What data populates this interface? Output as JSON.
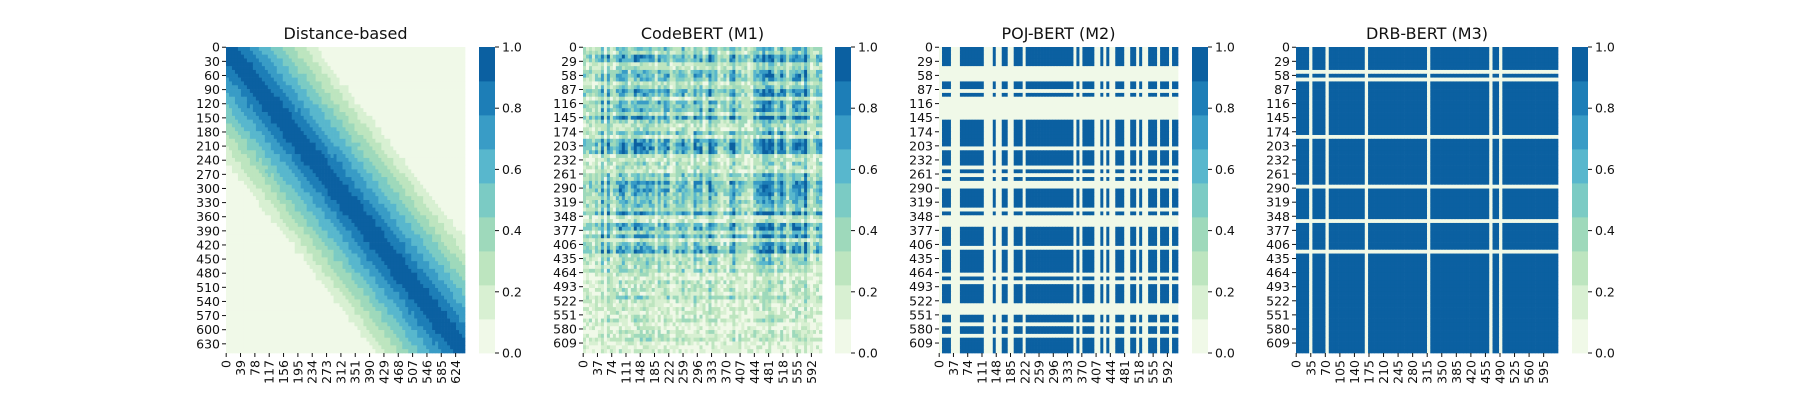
{
  "chart_data": [
    {
      "type": "heatmap",
      "title": "Distance-based",
      "pattern": "diagonal-band",
      "n_rows": 650,
      "n_cols": 650,
      "y_ticks": [
        "0",
        "30",
        "60",
        "90",
        "120",
        "150",
        "180",
        "210",
        "240",
        "270",
        "300",
        "330",
        "360",
        "390",
        "420",
        "450",
        "480",
        "510",
        "540",
        "570",
        "600",
        "630"
      ],
      "x_ticks": [
        "0",
        "39",
        "78",
        "117",
        "156",
        "195",
        "234",
        "273",
        "312",
        "351",
        "390",
        "429",
        "468",
        "507",
        "546",
        "585",
        "624"
      ],
      "colorbar": {
        "min": 0.0,
        "max": 1.0,
        "ticks": [
          "0.0",
          "0.2",
          "0.4",
          "0.6",
          "0.8",
          "1.0"
        ]
      }
    },
    {
      "type": "heatmap",
      "title": "CodeBERT (M1)",
      "pattern": "dense-noisy",
      "n_rows": 630,
      "n_cols": 620,
      "y_ticks": [
        "0",
        "29",
        "58",
        "87",
        "116",
        "145",
        "174",
        "203",
        "232",
        "261",
        "290",
        "319",
        "348",
        "377",
        "406",
        "435",
        "464",
        "493",
        "522",
        "551",
        "580",
        "609"
      ],
      "x_ticks": [
        "0",
        "37",
        "74",
        "111",
        "148",
        "185",
        "222",
        "259",
        "296",
        "333",
        "370",
        "407",
        "444",
        "481",
        "518",
        "555",
        "592"
      ],
      "colorbar": {
        "min": 0.0,
        "max": 1.0,
        "ticks": [
          "0.0",
          "0.2",
          "0.4",
          "0.6",
          "0.8",
          "1.0"
        ]
      }
    },
    {
      "type": "heatmap",
      "title": "POJ-BERT (M2)",
      "pattern": "binary-grid",
      "n_rows": 630,
      "n_cols": 620,
      "y_ticks": [
        "0",
        "29",
        "58",
        "87",
        "116",
        "145",
        "174",
        "203",
        "232",
        "261",
        "290",
        "319",
        "348",
        "377",
        "406",
        "435",
        "464",
        "493",
        "522",
        "551",
        "580",
        "609"
      ],
      "x_ticks": [
        "0",
        "37",
        "74",
        "111",
        "148",
        "185",
        "222",
        "259",
        "296",
        "333",
        "370",
        "407",
        "444",
        "481",
        "518",
        "555",
        "592"
      ],
      "colorbar": {
        "min": 0.0,
        "max": 1.0,
        "ticks": [
          "0.0",
          "0.2",
          "0.4",
          "0.6",
          "0.8",
          "1.0"
        ]
      }
    },
    {
      "type": "heatmap",
      "title": "DRB-BERT (M3)",
      "pattern": "mostly-saturated",
      "n_rows": 630,
      "n_cols": 630,
      "y_ticks": [
        "0",
        "29",
        "58",
        "87",
        "116",
        "145",
        "174",
        "203",
        "232",
        "261",
        "290",
        "319",
        "348",
        "377",
        "406",
        "435",
        "464",
        "493",
        "522",
        "551",
        "580",
        "609"
      ],
      "x_ticks": [
        "0",
        "35",
        "70",
        "105",
        "140",
        "175",
        "210",
        "245",
        "280",
        "315",
        "350",
        "385",
        "420",
        "455",
        "490",
        "525",
        "560",
        "595"
      ],
      "colorbar": {
        "min": 0.0,
        "max": 1.0,
        "ticks": [
          "0.0",
          "0.2",
          "0.4",
          "0.6",
          "0.8",
          "1.0"
        ]
      }
    }
  ],
  "colormap": {
    "name": "GnBu",
    "levels": [
      "#f0f9e8",
      "#d8f0d2",
      "#bde5bf",
      "#9ed9bb",
      "#7bcbc4",
      "#58b7cd",
      "#399cc6",
      "#1d7eb7",
      "#0b60a1"
    ]
  }
}
